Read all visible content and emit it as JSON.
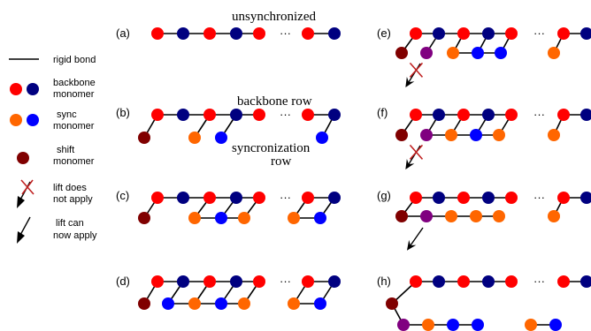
{
  "colors": {
    "backbone_red": "#ff0000",
    "backbone_blue": "#000080",
    "sync_orange": "#ff6600",
    "sync_blue": "#0000ff",
    "shift": "#800000",
    "shift_purple": "#800080",
    "bond": "#000000"
  },
  "legend": {
    "rigid_bond": "rigid bond",
    "backbone_1": "backbone",
    "backbone_2": "monomer",
    "sync_1": "sync",
    "sync_2": "monomer",
    "shift_1": "shift",
    "shift_2": "monomer",
    "nolift_1": "lift does",
    "nolift_2": "not apply",
    "lift_1": "lift can",
    "lift_2": "now apply"
  },
  "annotations": {
    "unsynchronized": "unsynchronized",
    "backbone_row": "backbone row",
    "sync_row_1": "syncronization",
    "sync_row_2": "row"
  },
  "ellipsis": "···",
  "panels": [
    {
      "label": "(a)"
    },
    {
      "label": "(b)"
    },
    {
      "label": "(c)"
    },
    {
      "label": "(d)"
    },
    {
      "label": "(e)"
    },
    {
      "label": "(f)"
    },
    {
      "label": "(g)"
    },
    {
      "label": "(h)"
    }
  ]
}
